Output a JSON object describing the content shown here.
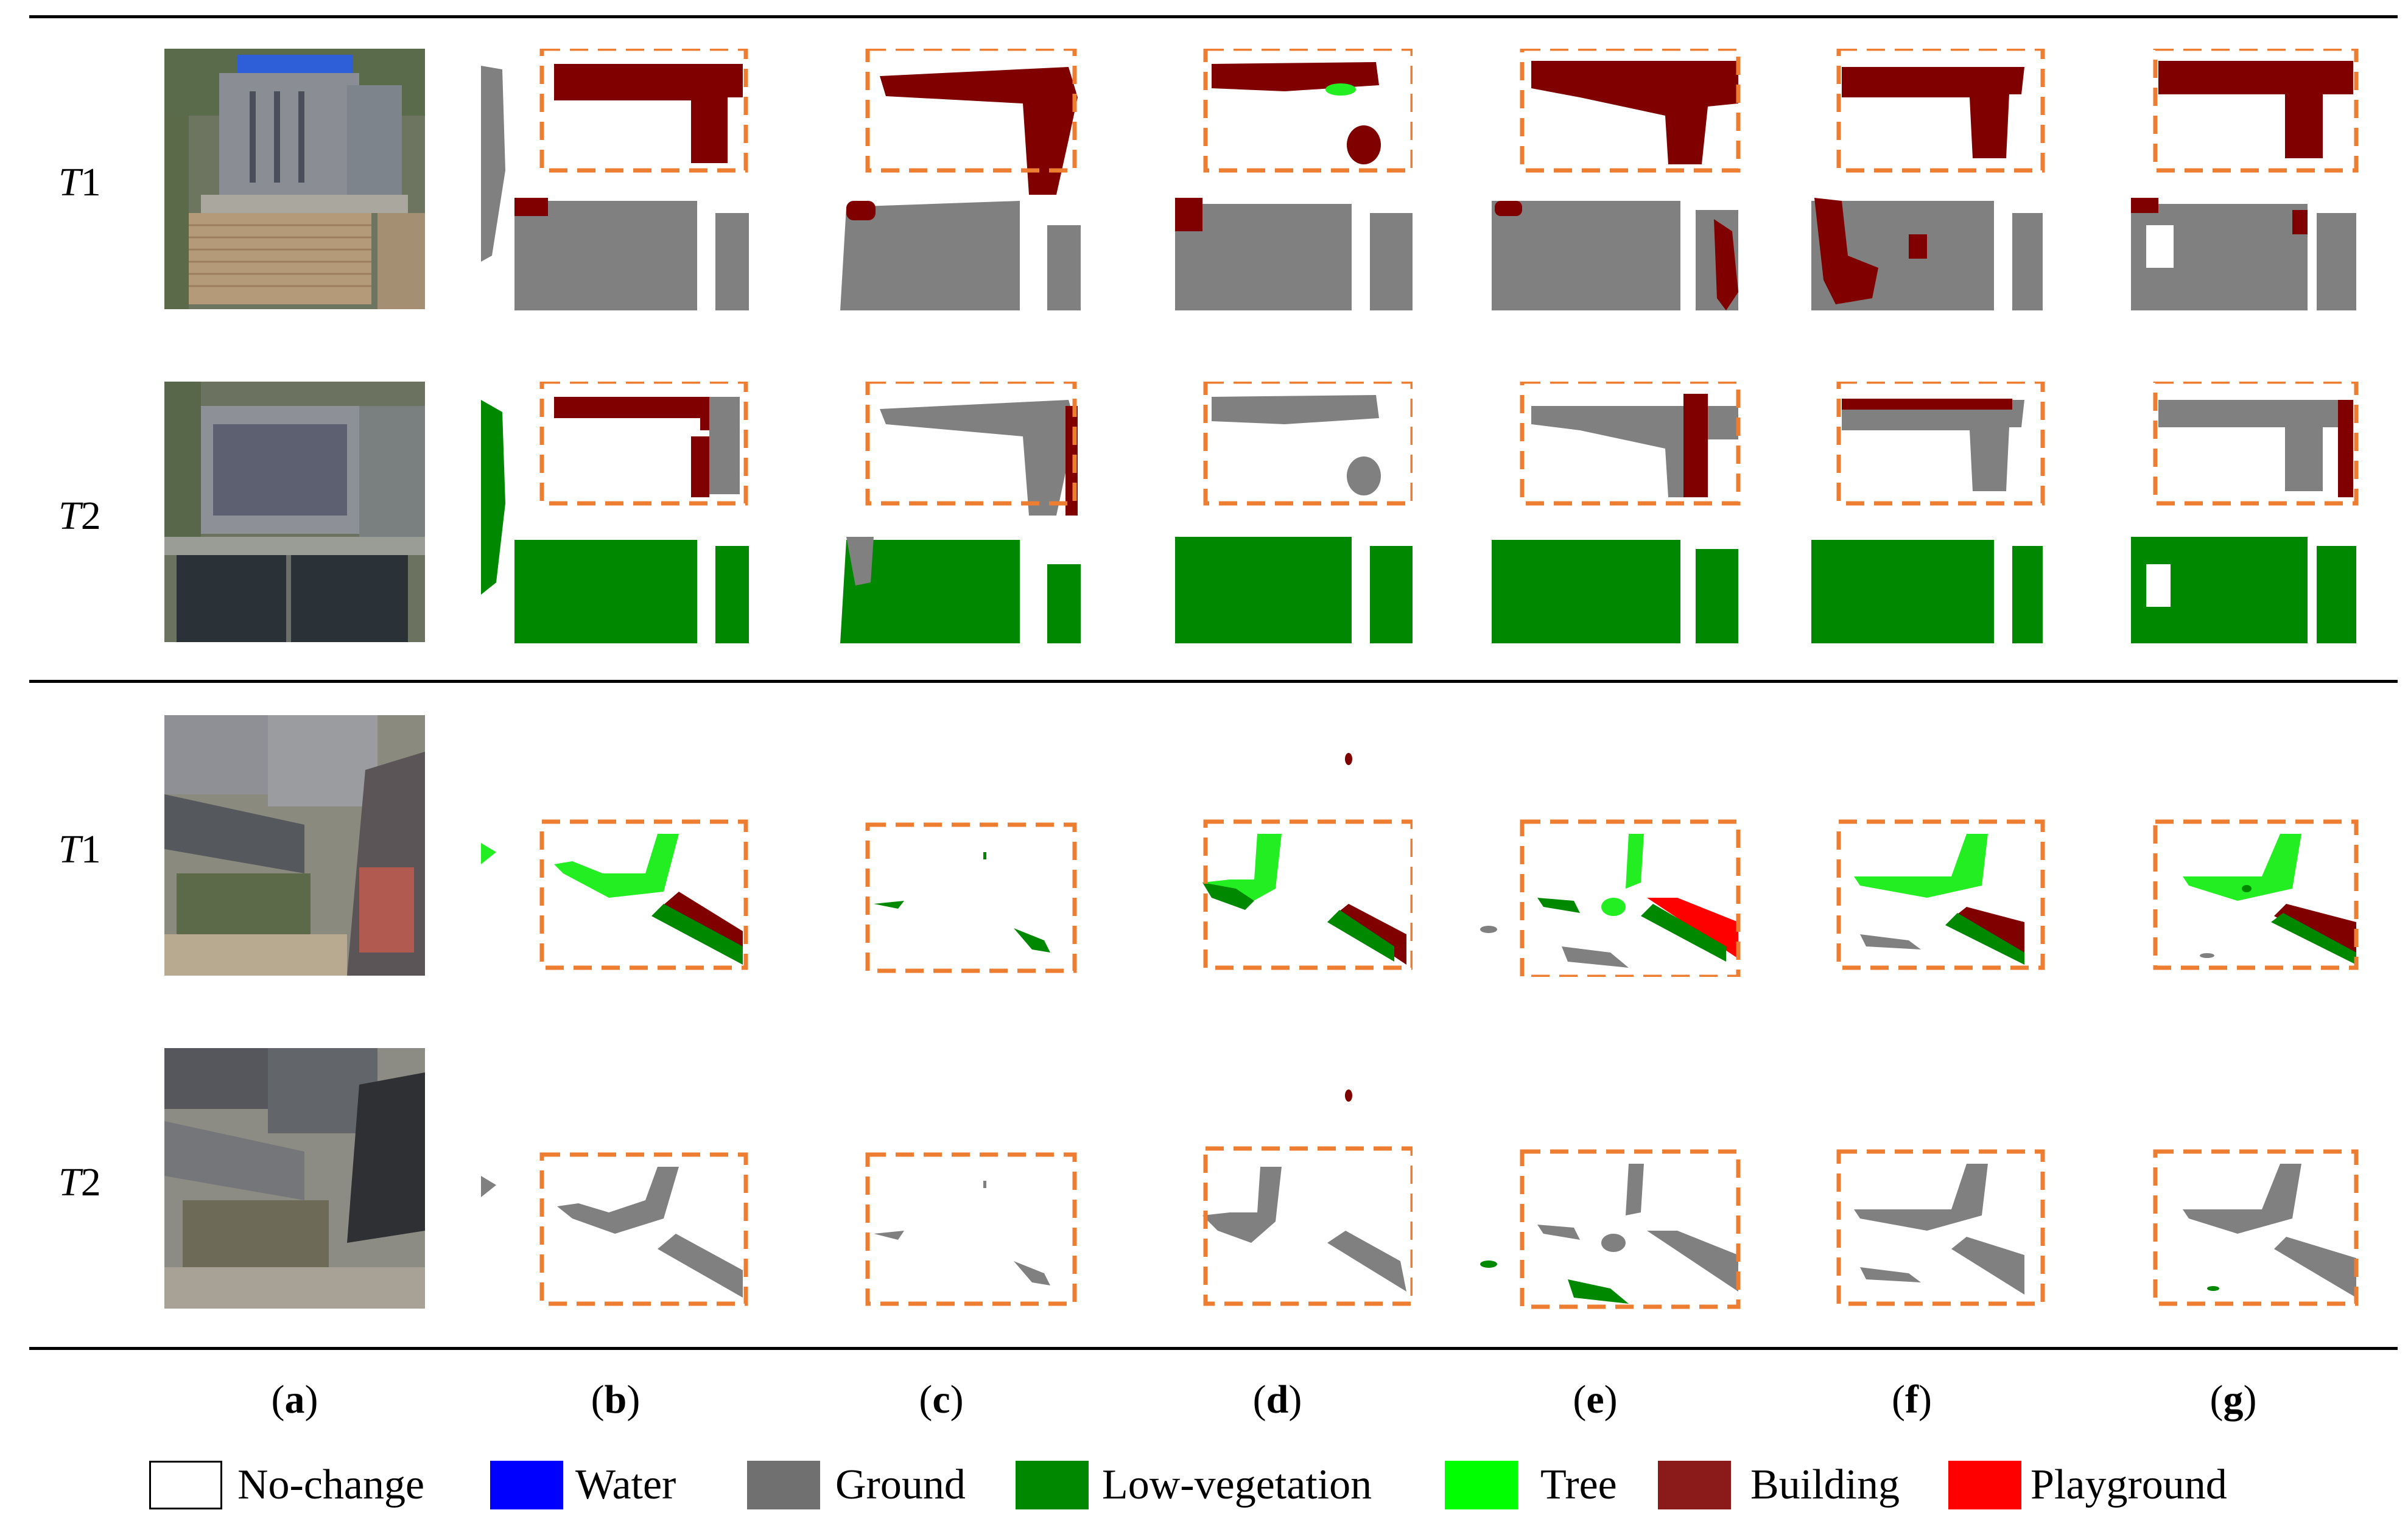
{
  "rows": [
    {
      "var": "T",
      "sub": "1"
    },
    {
      "var": "T",
      "sub": "2"
    },
    {
      "var": "T",
      "sub": "1"
    },
    {
      "var": "T",
      "sub": "2"
    }
  ],
  "columns": [
    "a",
    "b",
    "c",
    "d",
    "e",
    "f",
    "g"
  ],
  "legend": [
    {
      "label": "No-change",
      "color": "#ffffff"
    },
    {
      "label": "Water",
      "color": "#0000ff"
    },
    {
      "label": "Ground",
      "color": "#707070"
    },
    {
      "label": "Low-vegetation",
      "color": "#008800"
    },
    {
      "label": "Tree",
      "color": "#00ff00"
    },
    {
      "label": "Building",
      "color": "#8b1a1a"
    },
    {
      "label": "Playground",
      "color": "#ff0000"
    }
  ],
  "colors": {
    "ground": "#808080",
    "low_vegetation": "#008800",
    "tree": "#22ee22",
    "building": "#800000",
    "playground": "#ff0000",
    "highlight_box": "#ed7d31"
  }
}
